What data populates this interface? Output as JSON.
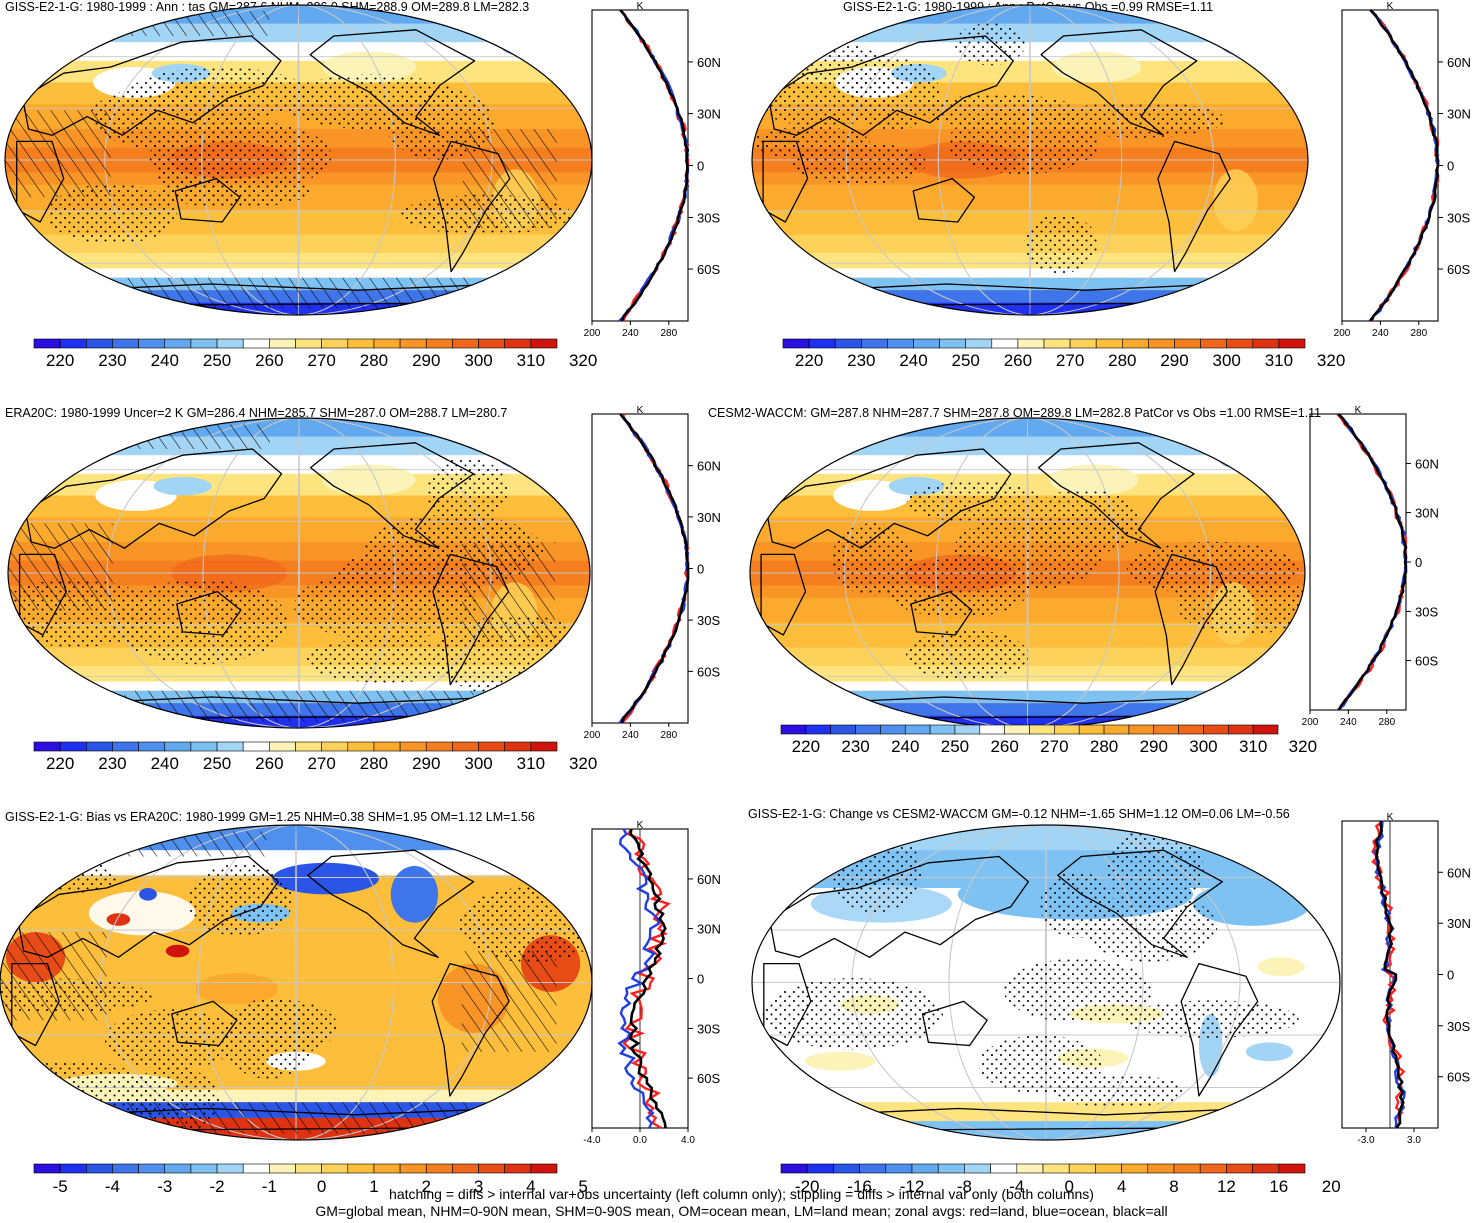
{
  "colors": {
    "scale": [
      "#2a0fe0",
      "#1f30f0",
      "#2a55e6",
      "#3f75ea",
      "#4f8fed",
      "#63a9f0",
      "#7ec1f3",
      "#a2d4f6",
      "#ffffff",
      "#fbf3b8",
      "#fde47f",
      "#fdd25a",
      "#fdbf3b",
      "#fcaa2e",
      "#f99526",
      "#f57e1f",
      "#f0661b",
      "#e84c16",
      "#de3212",
      "#d0140d"
    ],
    "land_line": "#000000",
    "grid": "#c8c8c8",
    "zonal_land": "#ff2020",
    "zonal_ocean": "#1f3ee0",
    "zonal_all": "#000000"
  },
  "panels": [
    {
      "title": "GISS-E2-1-G: 1980-1999 : Ann : tas GM=287.6 NHM=286.0 SHM=288.9 OM=289.8 LM=282.3",
      "field": "abs",
      "hatching": true,
      "colorbar_labels": [
        "220",
        "230",
        "240",
        "250",
        "260",
        "270",
        "280",
        "290",
        "300",
        "310",
        "320"
      ],
      "zonal": {
        "unit": "K",
        "xlim": [
          200,
          300
        ],
        "xticks": [
          "200",
          "240",
          "280"
        ],
        "lat_labels": [
          "60N",
          "30N",
          "0",
          "30S",
          "60S"
        ]
      }
    },
    {
      "title": "GISS-E2-1-G: 1980-1999 : Ann : PatCor vs Obs =0.99 RMSE=1.11",
      "field": "abs",
      "hatching": false,
      "colorbar_labels": [
        "220",
        "230",
        "240",
        "250",
        "260",
        "270",
        "280",
        "290",
        "300",
        "310",
        "320"
      ],
      "zonal": {
        "unit": "K",
        "xlim": [
          200,
          300
        ],
        "xticks": [
          "200",
          "240",
          "280"
        ],
        "lat_labels": [
          "60N",
          "30N",
          "0",
          "30S",
          "60S"
        ]
      }
    },
    {
      "title": "ERA20C: 1980-1999 Uncer=2 K GM=286.4 NHM=285.7 SHM=287.0 OM=288.7 LM=280.7",
      "field": "abs",
      "hatching": true,
      "colorbar_labels": [
        "220",
        "230",
        "240",
        "250",
        "260",
        "270",
        "280",
        "290",
        "300",
        "310",
        "320"
      ],
      "zonal": {
        "unit": "K",
        "xlim": [
          200,
          300
        ],
        "xticks": [
          "200",
          "240",
          "280"
        ],
        "lat_labels": [
          "60N",
          "30N",
          "0",
          "30S",
          "60S"
        ]
      }
    },
    {
      "title": "CESM2-WACCM: GM=287.8 NHM=287.7 SHM=287.8 OM=289.8 LM=282.8 PatCor vs Obs =1.00 RMSE=1.11",
      "field": "abs",
      "hatching": false,
      "colorbar_labels": [
        "220",
        "230",
        "240",
        "250",
        "260",
        "270",
        "280",
        "290",
        "300",
        "310",
        "320"
      ],
      "zonal": {
        "unit": "K",
        "xlim": [
          200,
          300
        ],
        "xticks": [
          "200",
          "240",
          "280"
        ],
        "lat_labels": [
          "60N",
          "30N",
          "0",
          "30S",
          "60S"
        ]
      }
    },
    {
      "title": "GISS-E2-1-G: Bias vs ERA20C: 1980-1999 GM=1.25 NHM=0.38 SHM=1.95 OM=1.12 LM=1.56",
      "field": "bias",
      "hatching": true,
      "colorbar_labels": [
        "-5",
        "-4",
        "-3",
        "-2",
        "-1",
        "0",
        "1",
        "2",
        "3",
        "4",
        "5"
      ],
      "zonal": {
        "unit": "K",
        "xlim": [
          -4,
          4
        ],
        "xticks": [
          "-4.0",
          "0.0",
          "4.0"
        ],
        "lat_labels": [
          "60N",
          "30N",
          "0",
          "30S",
          "60S"
        ]
      }
    },
    {
      "title": "GISS-E2-1-G: Change vs CESM2-WACCM GM=-0.12 NHM=-1.65 SHM=1.12 OM=0.06 LM=-0.56",
      "field": "change",
      "hatching": false,
      "colorbar_labels": [
        "-20",
        "-16",
        "-12",
        "-8",
        "-4",
        "0",
        "4",
        "8",
        "12",
        "16",
        "20"
      ],
      "zonal": {
        "unit": "K",
        "xlim": [
          -6,
          6
        ],
        "xticks": [
          "-3.0",
          "3.0"
        ],
        "lat_labels": [
          "60N",
          "30N",
          "0",
          "30S",
          "60S"
        ]
      }
    }
  ],
  "footer": {
    "line1": "hatching = diffs > internal var+obs uncertainty (left column only); stippling = diffs > internal var only (both columns)",
    "line2": "GM=global mean, NHM=0-90N mean, SHM=0-90S mean, OM=ocean mean, LM=land mean; zonal avgs: red=land, blue=ocean, black=all"
  }
}
